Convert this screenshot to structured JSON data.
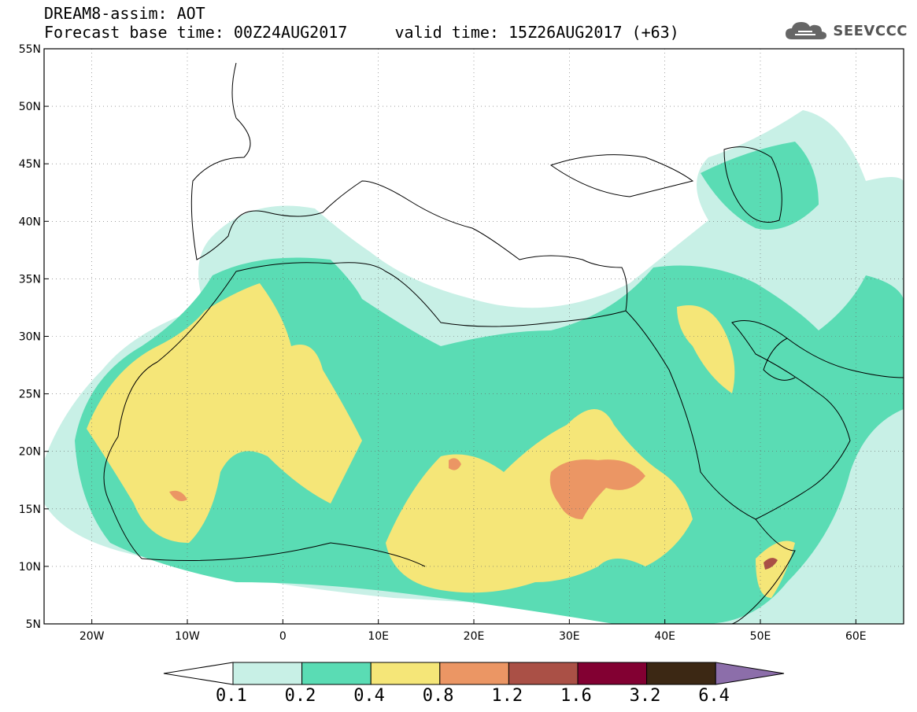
{
  "header": {
    "title": "DREAM8-assim: AOT",
    "subtitle": "Forecast base time: 00Z24AUG2017     valid time: 15Z26AUG2017 (+63)"
  },
  "logo": {
    "text": "SEEVCCC",
    "icon": "cloud-icon"
  },
  "map": {
    "lon_range": [
      -25,
      65
    ],
    "lat_range": [
      5,
      55
    ],
    "lon_ticks": [
      {
        "value": -20,
        "label": "20W"
      },
      {
        "value": -10,
        "label": "10W"
      },
      {
        "value": 0,
        "label": "0"
      },
      {
        "value": 10,
        "label": "10E"
      },
      {
        "value": 20,
        "label": "20E"
      },
      {
        "value": 30,
        "label": "30E"
      },
      {
        "value": 40,
        "label": "40E"
      },
      {
        "value": 50,
        "label": "50E"
      },
      {
        "value": 60,
        "label": "60E"
      }
    ],
    "lat_ticks": [
      {
        "value": 55,
        "label": "55N"
      },
      {
        "value": 50,
        "label": "50N"
      },
      {
        "value": 45,
        "label": "45N"
      },
      {
        "value": 40,
        "label": "40N"
      },
      {
        "value": 35,
        "label": "35N"
      },
      {
        "value": 30,
        "label": "30N"
      },
      {
        "value": 25,
        "label": "25N"
      },
      {
        "value": 20,
        "label": "20N"
      },
      {
        "value": 15,
        "label": "15N"
      },
      {
        "value": 10,
        "label": "10N"
      },
      {
        "value": 5,
        "label": "5N"
      }
    ]
  },
  "colorbar": {
    "levels": [
      "0.1",
      "0.2",
      "0.4",
      "0.8",
      "1.2",
      "1.6",
      "3.2",
      "6.4"
    ],
    "colors": [
      "#c8f0e6",
      "#5adcb4",
      "#f5e678",
      "#eb9664",
      "#aa5046",
      "#820032",
      "#3c2814",
      "#8c6eaa"
    ]
  }
}
